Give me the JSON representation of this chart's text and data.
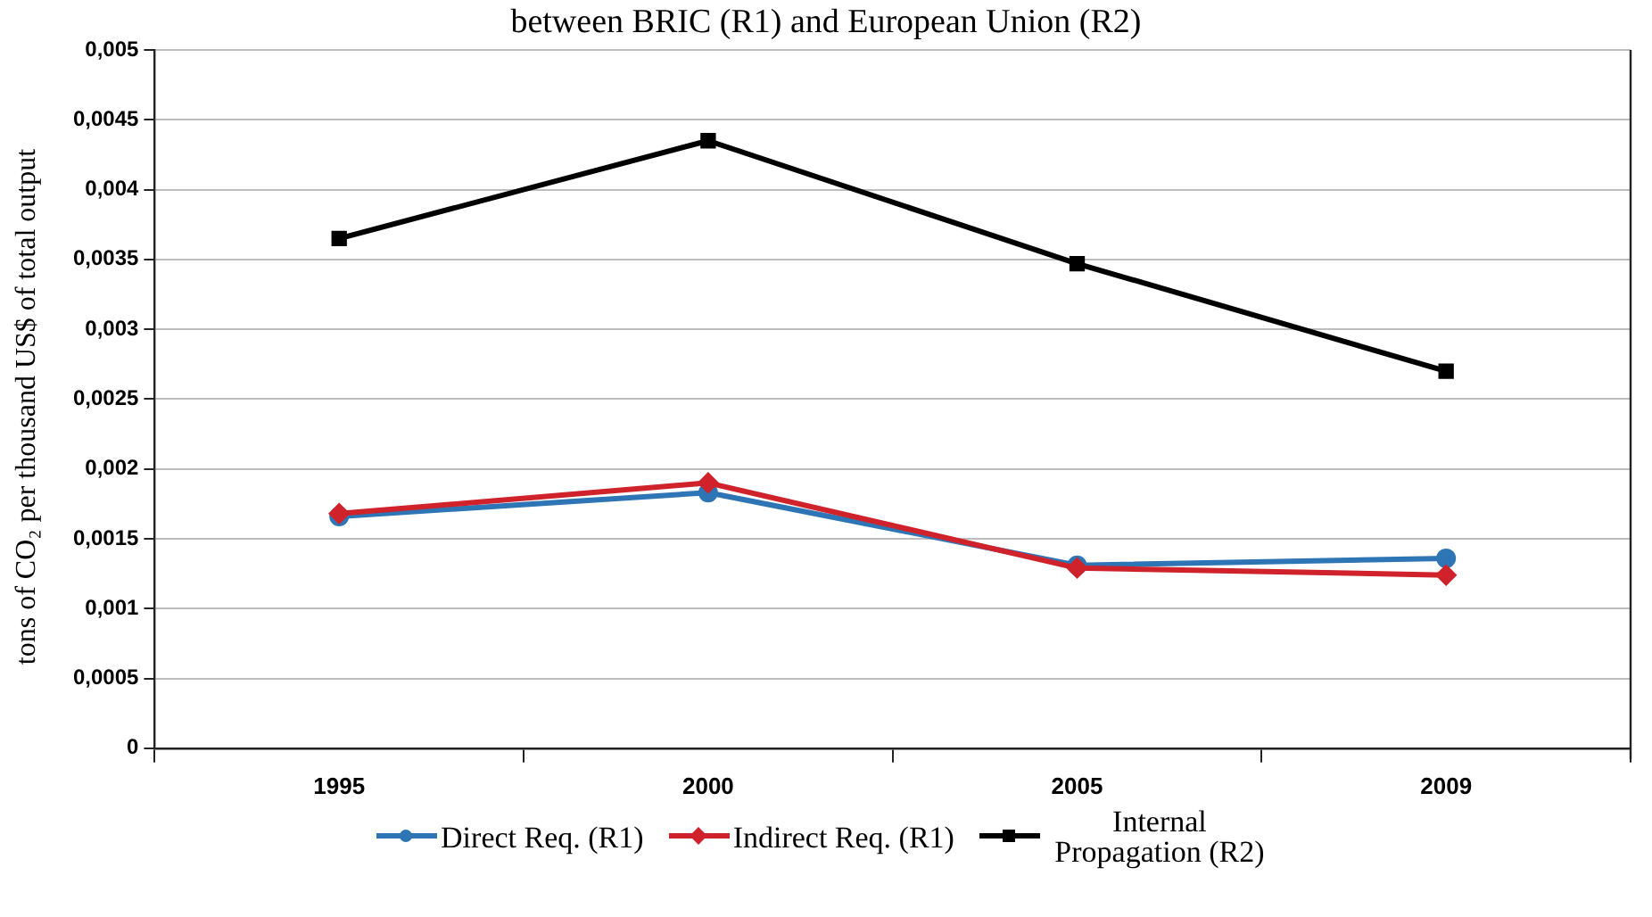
{
  "chart_data": {
    "type": "line",
    "title": "between BRIC (R1) and European Union (R2)",
    "ylabel": "tons of CO₂ per thousand US$ of total output",
    "categories": [
      "1995",
      "2000",
      "2005",
      "2009"
    ],
    "series": [
      {
        "name": "Direct Req. (R1)",
        "color": "#2e75b6",
        "marker": "circle",
        "values": [
          0.00166,
          0.00183,
          0.00131,
          0.00136
        ]
      },
      {
        "name": "Indirect Req. (R1)",
        "color": "#d0222a",
        "marker": "diamond",
        "values": [
          0.00168,
          0.0019,
          0.00129,
          0.00124
        ]
      },
      {
        "name": "Internal Propagation (R2)",
        "color": "#000000",
        "marker": "square",
        "values": [
          0.00365,
          0.00435,
          0.00347,
          0.0027
        ]
      }
    ],
    "ylim": [
      0,
      0.005
    ],
    "yticks": [
      {
        "value": 0,
        "label": "0"
      },
      {
        "value": 0.0005,
        "label": "0,0005"
      },
      {
        "value": 0.001,
        "label": "0,001"
      },
      {
        "value": 0.0015,
        "label": "0,0015"
      },
      {
        "value": 0.002,
        "label": "0,002"
      },
      {
        "value": 0.0025,
        "label": "0,0025"
      },
      {
        "value": 0.003,
        "label": "0,003"
      },
      {
        "value": 0.0035,
        "label": "0,0035"
      },
      {
        "value": 0.004,
        "label": "0,004"
      },
      {
        "value": 0.0045,
        "label": "0,0045"
      },
      {
        "value": 0.005,
        "label": "0,005"
      }
    ],
    "grid": "y",
    "legend": "bottom",
    "line_style": "solid"
  }
}
